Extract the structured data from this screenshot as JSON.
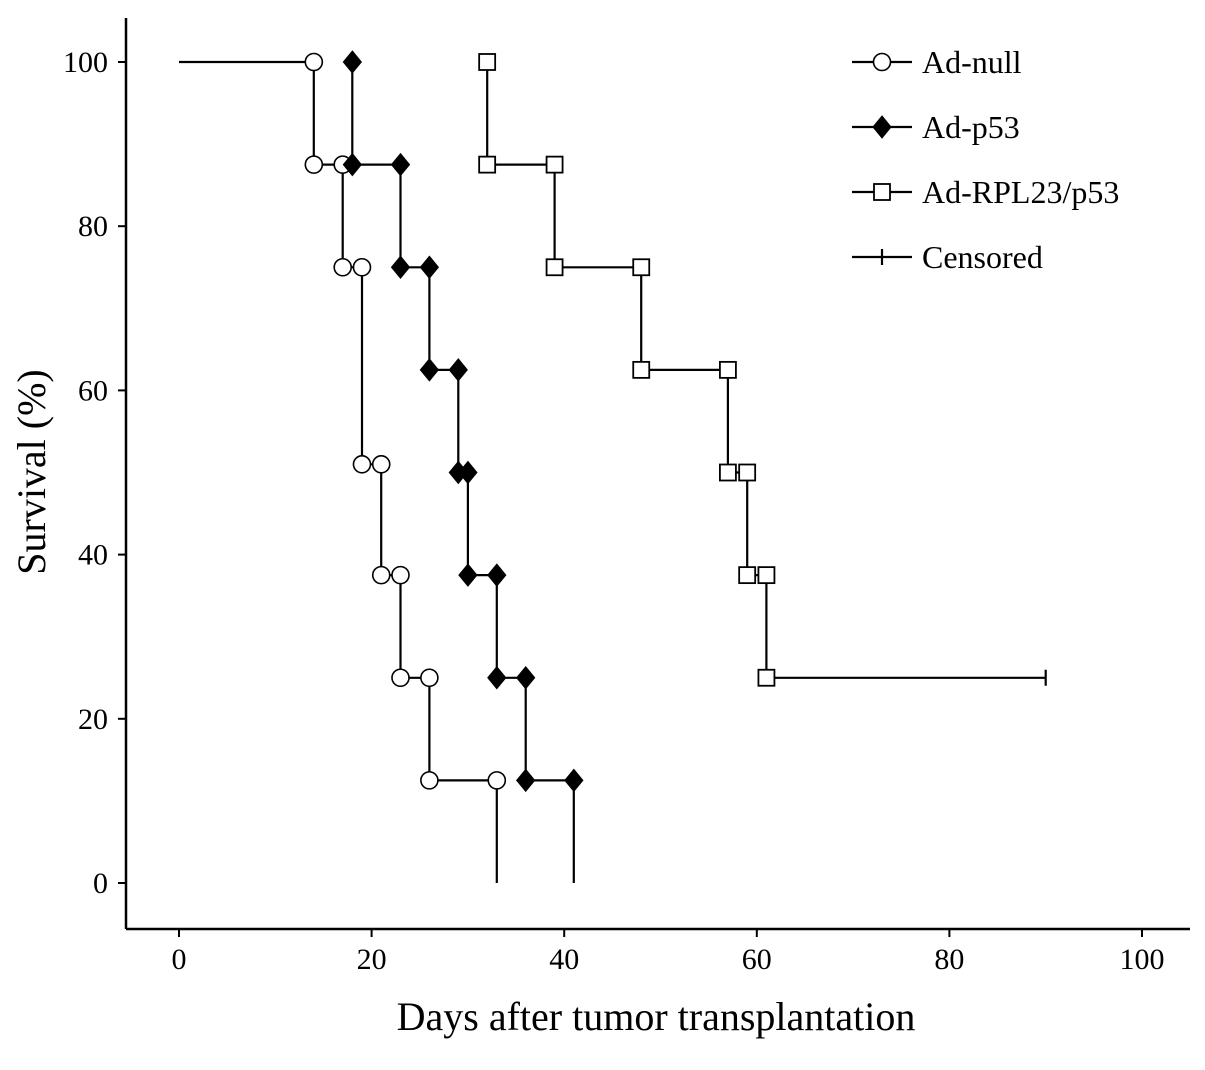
{
  "chart_data": {
    "type": "line",
    "xlabel": "Days after tumor transplantation",
    "ylabel": "Survival (%)",
    "xlim": [
      0,
      100
    ],
    "ylim": [
      0,
      100
    ],
    "xticks": [
      0,
      20,
      40,
      60,
      80,
      100
    ],
    "yticks": [
      0,
      20,
      40,
      60,
      80,
      100
    ],
    "xtick_labels": [
      "0",
      "20",
      "40",
      "60",
      "80",
      "100"
    ],
    "ytick_labels": [
      "0",
      "20",
      "40",
      "60",
      "80",
      "100"
    ],
    "grid": false,
    "legend_position": "top-right",
    "series": [
      {
        "name": "Ad-null",
        "marker": "open-circle",
        "x": [
          0,
          14,
          14,
          17,
          17,
          19,
          19,
          21,
          21,
          23,
          23,
          26,
          26,
          33,
          33
        ],
        "y": [
          100,
          100,
          87.5,
          87.5,
          75,
          75,
          51,
          51,
          37.5,
          37.5,
          25,
          25,
          12.5,
          12.5,
          0
        ],
        "marker_points": [
          [
            14,
            100
          ],
          [
            14,
            87.5
          ],
          [
            17,
            87.5
          ],
          [
            17,
            75
          ],
          [
            19,
            75
          ],
          [
            19,
            51
          ],
          [
            21,
            51
          ],
          [
            21,
            37.5
          ],
          [
            23,
            37.5
          ],
          [
            23,
            25
          ],
          [
            26,
            25
          ],
          [
            26,
            12.5
          ],
          [
            33,
            12.5
          ]
        ]
      },
      {
        "name": "Ad-p53",
        "marker": "filled-diamond",
        "x": [
          18,
          18,
          23,
          23,
          26,
          26,
          29,
          29,
          30,
          30,
          33,
          33,
          36,
          36,
          41,
          41
        ],
        "y": [
          100,
          87.5,
          87.5,
          75,
          75,
          62.5,
          62.5,
          50,
          50,
          37.5,
          37.5,
          25,
          25,
          12.5,
          12.5,
          0
        ],
        "marker_points": [
          [
            18,
            100
          ],
          [
            18,
            87.5
          ],
          [
            23,
            87.5
          ],
          [
            23,
            75
          ],
          [
            26,
            75
          ],
          [
            26,
            62.5
          ],
          [
            29,
            62.5
          ],
          [
            29,
            50
          ],
          [
            30,
            50
          ],
          [
            30,
            37.5
          ],
          [
            33,
            37.5
          ],
          [
            33,
            25
          ],
          [
            36,
            25
          ],
          [
            36,
            12.5
          ],
          [
            41,
            12.5
          ]
        ]
      },
      {
        "name": "Ad-RPL23/p53",
        "marker": "open-square",
        "x": [
          32,
          32,
          39,
          39,
          48,
          48,
          57,
          57,
          59,
          59,
          61,
          61,
          90
        ],
        "y": [
          100,
          87.5,
          87.5,
          75,
          75,
          62.5,
          62.5,
          50,
          50,
          37.5,
          37.5,
          25,
          25
        ],
        "marker_points": [
          [
            32,
            100
          ],
          [
            32,
            87.5
          ],
          [
            39,
            87.5
          ],
          [
            39,
            75
          ],
          [
            48,
            75
          ],
          [
            48,
            62.5
          ],
          [
            57,
            62.5
          ],
          [
            57,
            50
          ],
          [
            59,
            50
          ],
          [
            59,
            37.5
          ],
          [
            61,
            37.5
          ],
          [
            61,
            25
          ]
        ],
        "censored_points": [
          [
            90,
            25
          ]
        ]
      }
    ],
    "legend": [
      {
        "label": "Ad-null",
        "marker": "open-circle"
      },
      {
        "label": "Ad-p53",
        "marker": "filled-diamond"
      },
      {
        "label": "Ad-RPL23/p53",
        "marker": "open-square"
      },
      {
        "label": "Censored",
        "marker": "tick"
      }
    ]
  }
}
